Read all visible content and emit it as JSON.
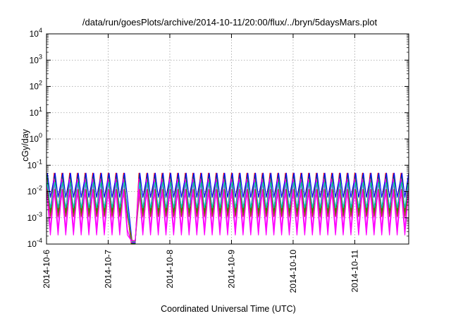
{
  "chart_data": {
    "type": "line",
    "title": "/data/run/goesPlots/archive/2014-10-11/20:00/flux/../bryn/5daysMars.plot",
    "xlabel": "Coordinated Universal Time (UTC)",
    "ylabel": "cGy/day",
    "yscale": "log",
    "ylim": [
      0.0001,
      10000
    ],
    "y_ticks": [
      {
        "base": "10",
        "exp": "-4",
        "value": 0.0001
      },
      {
        "base": "10",
        "exp": "-3",
        "value": 0.001
      },
      {
        "base": "10",
        "exp": "-2",
        "value": 0.01
      },
      {
        "base": "10",
        "exp": "-1",
        "value": 0.1
      },
      {
        "base": "10",
        "exp": "0",
        "value": 1
      },
      {
        "base": "10",
        "exp": "1",
        "value": 10
      },
      {
        "base": "10",
        "exp": "2",
        "value": 100
      },
      {
        "base": "10",
        "exp": "3",
        "value": 1000
      },
      {
        "base": "10",
        "exp": "4",
        "value": 10000
      }
    ],
    "x_ticks": [
      "2014-10-6",
      "2014-10-7",
      "2014-10-8",
      "2014-10-9",
      "2014-10-10",
      "2014-10-11"
    ],
    "xlim": [
      "2014-10-06 00:00",
      "2014-10-11 21:00"
    ],
    "grid": true,
    "legend": "none",
    "cycle_hours": 3,
    "dropout": {
      "start": "2014-10-07 09:00",
      "end": "2014-10-07 10:30",
      "level": 0.0001
    },
    "series": [
      {
        "color": "#ff0000",
        "peak": 0.05,
        "trough": 0.0017
      },
      {
        "color": "#00a000",
        "peak": 0.044,
        "trough": 0.0013
      },
      {
        "color": "#0000ff",
        "peak": 0.05,
        "trough": 0.006
      },
      {
        "color": "#ff00ff",
        "peak": 0.03,
        "trough": 0.00035
      },
      {
        "color": "#00c8c8",
        "peak": 0.022,
        "trough": 0.0024
      },
      {
        "color": "#a05020",
        "peak": 0.012,
        "trough": 0.0011
      },
      {
        "color": "#ff00ff",
        "peak": 0.012,
        "trough": 0.00022
      }
    ]
  }
}
